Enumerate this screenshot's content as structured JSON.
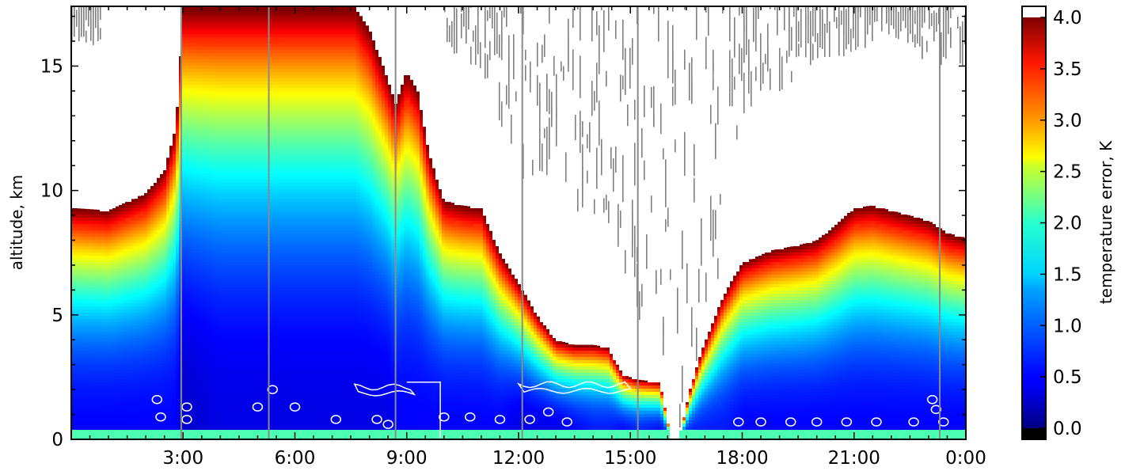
{
  "chart_data": {
    "type": "heatmap",
    "title": "",
    "xlabel": "",
    "ylabel": "altitude, km",
    "x_ticks": [
      "3:00",
      "6:00",
      "9:00",
      "12:00",
      "15:00",
      "18:00",
      "21:00",
      "0:00"
    ],
    "x_tick_hours": [
      3,
      6,
      9,
      12,
      15,
      18,
      21,
      24
    ],
    "x_range_hours": [
      0.0,
      24.0
    ],
    "y_ticks": [
      "0",
      "5",
      "10",
      "15"
    ],
    "y_tick_values": [
      0,
      5,
      10,
      15
    ],
    "ylim": [
      0,
      17.4
    ],
    "colorbar": {
      "label": "temperature error, K",
      "range": [
        0.0,
        4.0
      ],
      "ticks": [
        "0.0",
        "0.5",
        "1.0",
        "1.5",
        "2.0",
        "2.5",
        "3.0",
        "3.5",
        "4.0"
      ],
      "tick_values": [
        0.0,
        0.5,
        1.0,
        1.5,
        2.0,
        2.5,
        3.0,
        3.5,
        4.0
      ],
      "colormap": "jet",
      "over_color": "#ffffff",
      "under_color": "#000000"
    },
    "coverage_ceiling": {
      "description_hours": "approximate maximum altitude (km) of valid retrieval vs. hour of day",
      "hours": [
        0.0,
        1.0,
        2.0,
        2.5,
        2.8,
        2.9,
        3.0,
        4.0,
        5.0,
        6.0,
        7.0,
        7.6,
        8.0,
        8.5,
        8.7,
        9.0,
        9.3,
        9.6,
        10.0,
        10.5,
        11.0,
        11.5,
        12.0,
        12.5,
        13.0,
        13.5,
        14.0,
        14.4,
        14.8,
        15.2,
        15.8,
        16.1,
        16.3,
        16.6,
        16.9,
        17.5,
        18.0,
        18.8,
        19.5,
        20.0,
        20.5,
        21.0,
        21.5,
        22.0,
        22.5,
        23.0,
        23.5,
        24.0
      ],
      "max_km": [
        9.3,
        9.2,
        9.9,
        10.8,
        12.5,
        14.5,
        17.4,
        17.4,
        17.4,
        17.4,
        17.4,
        17.4,
        16.5,
        14.5,
        13.5,
        14.8,
        14.0,
        11.5,
        9.6,
        9.4,
        9.3,
        7.5,
        6.3,
        5.0,
        4.0,
        3.8,
        3.8,
        3.7,
        2.6,
        2.4,
        2.3,
        0.0,
        0.0,
        2.0,
        3.5,
        5.8,
        7.1,
        7.6,
        7.8,
        8.0,
        8.6,
        9.3,
        9.4,
        9.2,
        9.0,
        8.8,
        8.3,
        8.1
      ],
      "min_error_k": [
        0.5,
        0.5,
        0.5,
        0.5,
        0.5,
        0.4,
        0.3,
        0.4,
        0.4,
        0.4,
        0.4,
        0.4,
        0.4,
        0.4,
        0.5,
        0.5,
        0.5,
        0.5,
        0.5,
        0.5,
        0.5,
        0.5,
        0.4,
        0.4,
        0.4,
        0.5,
        0.6,
        0.6,
        0.5,
        0.6,
        0.5,
        0.5,
        0.5,
        0.6,
        0.6,
        0.6,
        0.5,
        0.5,
        0.5,
        0.5,
        0.5,
        0.5,
        0.5,
        0.5,
        0.5,
        0.5,
        0.5,
        0.5
      ]
    },
    "cloud_mask_bounds": {
      "description": "approximate altitude range (km) of grey cloud-mask streaks vs. hour",
      "hours": [
        0.0,
        0.8,
        1.0,
        2.0,
        3.0,
        4.0,
        5.0,
        6.0,
        7.0,
        8.0,
        9.0,
        10.0,
        11.0,
        12.0,
        13.0,
        14.0,
        15.0,
        15.6,
        16.0,
        16.4,
        17.0,
        18.0,
        19.0,
        20.0,
        21.0,
        22.0,
        23.0,
        23.5,
        24.0
      ],
      "low_km": [
        15.8,
        15.8,
        null,
        null,
        null,
        null,
        null,
        null,
        null,
        null,
        null,
        16.0,
        14.0,
        10.0,
        10.0,
        8.5,
        6.0,
        2.0,
        0.0,
        0.0,
        2.0,
        13.0,
        14.0,
        15.0,
        15.5,
        16.0,
        15.0,
        15.0,
        15.0
      ]
    },
    "vertical_gridlines_hours": [
      2.95,
      5.3,
      8.7,
      12.1,
      15.2,
      23.3
    ]
  }
}
